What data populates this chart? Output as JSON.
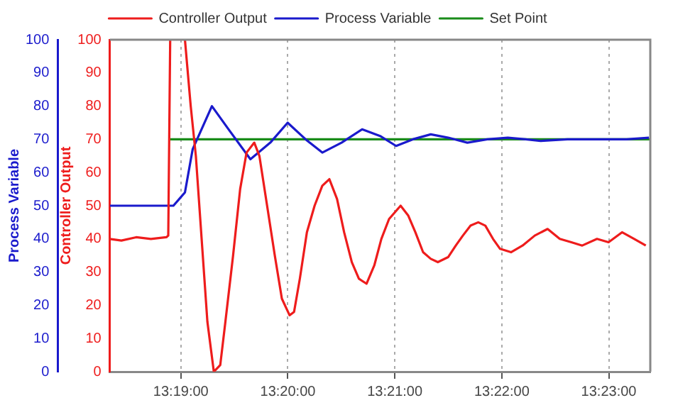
{
  "chart_data": {
    "type": "line",
    "ylabel": "Process Variable",
    "y2label": "Controller Output",
    "xlim": [
      13.3056,
      13.3898
    ],
    "xticks": [
      {
        "value": 13.316667,
        "label": "13:19:00"
      },
      {
        "value": 13.333333,
        "label": "13:20:00"
      },
      {
        "value": 13.35,
        "label": "13:21:00"
      },
      {
        "value": 13.366667,
        "label": "13:22:00"
      },
      {
        "value": 13.383333,
        "label": "13:23:00"
      }
    ],
    "ylim": [
      0,
      100
    ],
    "yticks": [
      0,
      10,
      20,
      30,
      40,
      50,
      60,
      70,
      80,
      90,
      100
    ],
    "y2lim": [
      0,
      100
    ],
    "y2ticks": [
      0,
      10,
      20,
      30,
      40,
      50,
      60,
      70,
      80,
      90,
      100
    ],
    "grid": "x",
    "legend": "top",
    "marker": "none",
    "line_style": "solid",
    "series": [
      {
        "name": "Controller Output",
        "color": "#ee1c1c",
        "axis": "y2",
        "x": [
          13.3056,
          13.3074,
          13.3097,
          13.312,
          13.3144,
          13.3147,
          13.315,
          13.316,
          13.3173,
          13.3182,
          13.319,
          13.3199,
          13.3208,
          13.3218,
          13.3228,
          13.3236,
          13.3248,
          13.3259,
          13.3269,
          13.3281,
          13.3289,
          13.3301,
          13.3313,
          13.3324,
          13.3336,
          13.3343,
          13.3352,
          13.3363,
          13.3375,
          13.3387,
          13.3398,
          13.341,
          13.3421,
          13.3433,
          13.3444,
          13.3456,
          13.3468,
          13.3479,
          13.3491,
          13.3509,
          13.3521,
          13.3532,
          13.3544,
          13.3556,
          13.3567,
          13.3583,
          13.3595,
          13.3606,
          13.3618,
          13.363,
          13.3641,
          13.3653,
          13.3664,
          13.3681,
          13.3699,
          13.3718,
          13.3738,
          13.3757,
          13.3775,
          13.3792,
          13.3815,
          13.3833,
          13.3854,
          13.3873,
          13.3891
        ],
        "values": [
          40,
          39.5,
          40.5,
          40,
          40.5,
          41,
          100,
          null,
          100,
          80,
          65,
          40,
          15,
          0,
          2,
          15,
          35,
          55,
          66,
          69,
          65,
          50,
          35,
          22,
          17,
          18,
          28,
          42,
          50,
          56,
          58,
          52,
          42,
          33,
          28,
          26.5,
          32,
          40,
          46,
          50,
          47,
          42,
          36,
          34,
          33,
          34.5,
          38,
          41,
          44,
          45,
          44,
          40,
          37,
          36,
          38,
          41,
          43,
          40,
          39,
          38,
          40,
          39,
          42,
          40,
          38
        ]
      },
      {
        "name": "Process Variable",
        "color": "#1a1acc",
        "axis": "y",
        "x": [
          13.3056,
          13.3097,
          13.3144,
          13.3155,
          13.3173,
          13.3185,
          13.3215,
          13.3241,
          13.3275,
          13.3306,
          13.3333,
          13.3361,
          13.3387,
          13.3417,
          13.3449,
          13.3477,
          13.3502,
          13.3528,
          13.3556,
          13.3583,
          13.3613,
          13.3644,
          13.3676,
          13.3704,
          13.3727,
          13.3769,
          13.3815,
          13.3861,
          13.3896
        ],
        "values": [
          50,
          50,
          50,
          50,
          54,
          67,
          80,
          73,
          64,
          69,
          75,
          70,
          66,
          69,
          73,
          71,
          68,
          70,
          71.5,
          70.5,
          69,
          70,
          70.5,
          70,
          69.5,
          70,
          70,
          70,
          70.5
        ]
      },
      {
        "name": "Set Point",
        "color": "#1a8c1a",
        "axis": "y",
        "x": [
          13.315,
          13.3898
        ],
        "values": [
          70,
          70
        ]
      }
    ]
  }
}
